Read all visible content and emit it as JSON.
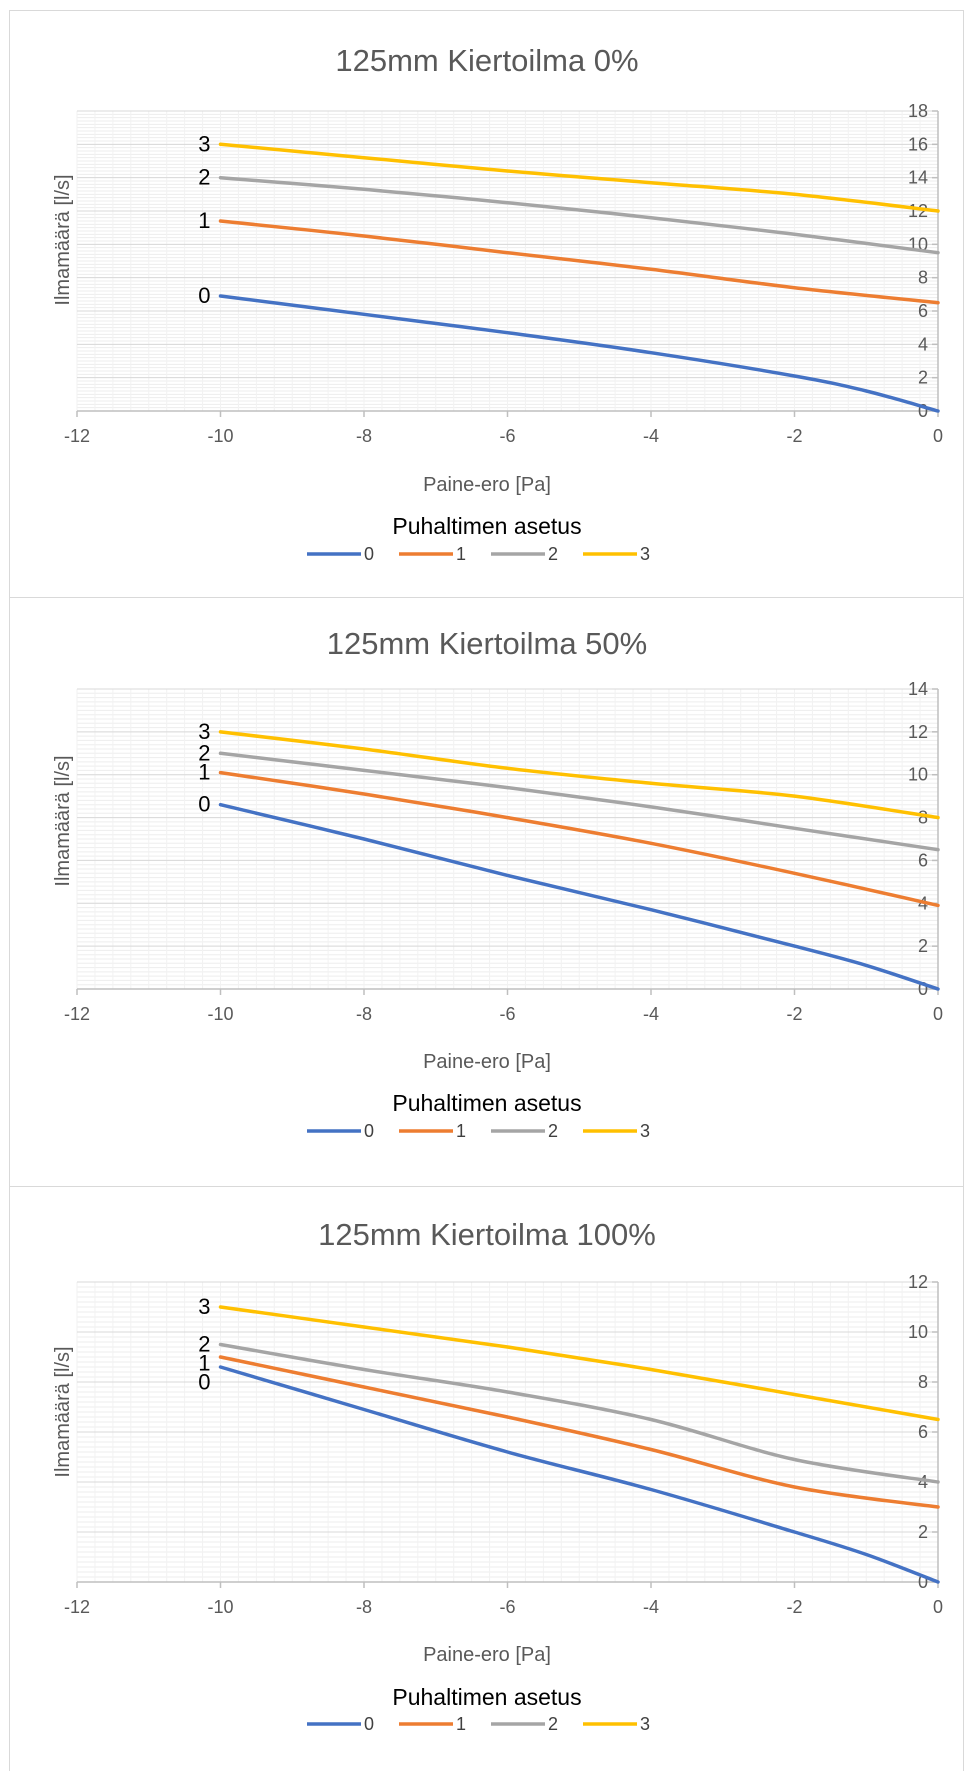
{
  "colors": {
    "s0": "#4472C4",
    "s1": "#ED7D31",
    "s2": "#A5A5A5",
    "s3": "#FFC000"
  },
  "chart_data": [
    {
      "type": "line",
      "title": "125mm Kiertoilma 0%",
      "xlabel": "Paine-ero [Pa]",
      "ylabel": "Ilmamäärä [l/s]",
      "xlim": [
        -12,
        0
      ],
      "ylim": [
        0,
        18
      ],
      "xticks": [
        -12,
        -10,
        -8,
        -6,
        -4,
        -2,
        0
      ],
      "yticks": [
        0,
        2,
        4,
        6,
        8,
        10,
        12,
        14,
        16,
        18
      ],
      "grid": "minor-dense",
      "legend": {
        "title": "Puhaltimen asetus",
        "position": "bottom"
      },
      "series": [
        {
          "name": "0",
          "x": [
            -10,
            -8,
            -6,
            -4,
            -2,
            -1,
            0
          ],
          "y": [
            6.9,
            5.8,
            4.7,
            3.5,
            2.1,
            1.2,
            0
          ]
        },
        {
          "name": "1",
          "x": [
            -10,
            -8,
            -6,
            -4,
            -2,
            0
          ],
          "y": [
            11.4,
            10.5,
            9.5,
            8.5,
            7.4,
            6.5
          ]
        },
        {
          "name": "2",
          "x": [
            -10,
            -8,
            -6,
            -4,
            -2,
            0
          ],
          "y": [
            14.0,
            13.3,
            12.5,
            11.6,
            10.6,
            9.5
          ]
        },
        {
          "name": "3",
          "x": [
            -10,
            -8,
            -6,
            -4,
            -2,
            0
          ],
          "y": [
            16.0,
            15.2,
            14.4,
            13.7,
            13.0,
            12.0
          ]
        }
      ]
    },
    {
      "type": "line",
      "title": "125mm Kiertoilma 50%",
      "xlabel": "Paine-ero [Pa]",
      "ylabel": "Ilmamäärä [l/s]",
      "xlim": [
        -12,
        0
      ],
      "ylim": [
        0,
        14
      ],
      "xticks": [
        -12,
        -10,
        -8,
        -6,
        -4,
        -2,
        0
      ],
      "yticks": [
        0,
        2,
        4,
        6,
        8,
        10,
        12,
        14
      ],
      "grid": "minor-dense",
      "legend": {
        "title": "Puhaltimen asetus",
        "position": "bottom"
      },
      "series": [
        {
          "name": "0",
          "x": [
            -10,
            -8,
            -6,
            -4,
            -2,
            -1,
            0
          ],
          "y": [
            8.6,
            7.0,
            5.3,
            3.7,
            2.0,
            1.1,
            0
          ]
        },
        {
          "name": "1",
          "x": [
            -10,
            -8,
            -6,
            -4,
            -2,
            0
          ],
          "y": [
            10.1,
            9.1,
            8.0,
            6.8,
            5.4,
            3.9
          ]
        },
        {
          "name": "2",
          "x": [
            -10,
            -8,
            -6,
            -4,
            -2,
            0
          ],
          "y": [
            11.0,
            10.2,
            9.4,
            8.5,
            7.5,
            6.5
          ]
        },
        {
          "name": "3",
          "x": [
            -10,
            -8,
            -6,
            -4,
            -2,
            0
          ],
          "y": [
            12.0,
            11.2,
            10.3,
            9.6,
            9.0,
            8.0
          ]
        }
      ]
    },
    {
      "type": "line",
      "title": "125mm Kiertoilma 100%",
      "xlabel": "Paine-ero [Pa]",
      "ylabel": "Ilmamäärä [l/s]",
      "xlim": [
        -12,
        0
      ],
      "ylim": [
        0,
        12
      ],
      "xticks": [
        -12,
        -10,
        -8,
        -6,
        -4,
        -2,
        0
      ],
      "yticks": [
        0,
        2,
        4,
        6,
        8,
        10,
        12
      ],
      "grid": "minor-dense",
      "legend": {
        "title": "Puhaltimen asetus",
        "position": "bottom"
      },
      "series": [
        {
          "name": "0",
          "x": [
            -10,
            -8,
            -6,
            -4,
            -2,
            -1,
            0
          ],
          "y": [
            8.6,
            6.9,
            5.2,
            3.7,
            2.0,
            1.1,
            0
          ]
        },
        {
          "name": "1",
          "x": [
            -10,
            -8,
            -6,
            -4,
            -2,
            0
          ],
          "y": [
            9.0,
            7.8,
            6.6,
            5.3,
            3.8,
            3.0
          ]
        },
        {
          "name": "2",
          "x": [
            -10,
            -8,
            -6,
            -4,
            -2,
            0
          ],
          "y": [
            9.5,
            8.5,
            7.6,
            6.5,
            4.9,
            4.0
          ]
        },
        {
          "name": "3",
          "x": [
            -10,
            -8,
            -6,
            -4,
            -2,
            0
          ],
          "y": [
            11.0,
            10.2,
            9.4,
            8.5,
            7.5,
            6.5
          ]
        }
      ]
    }
  ]
}
